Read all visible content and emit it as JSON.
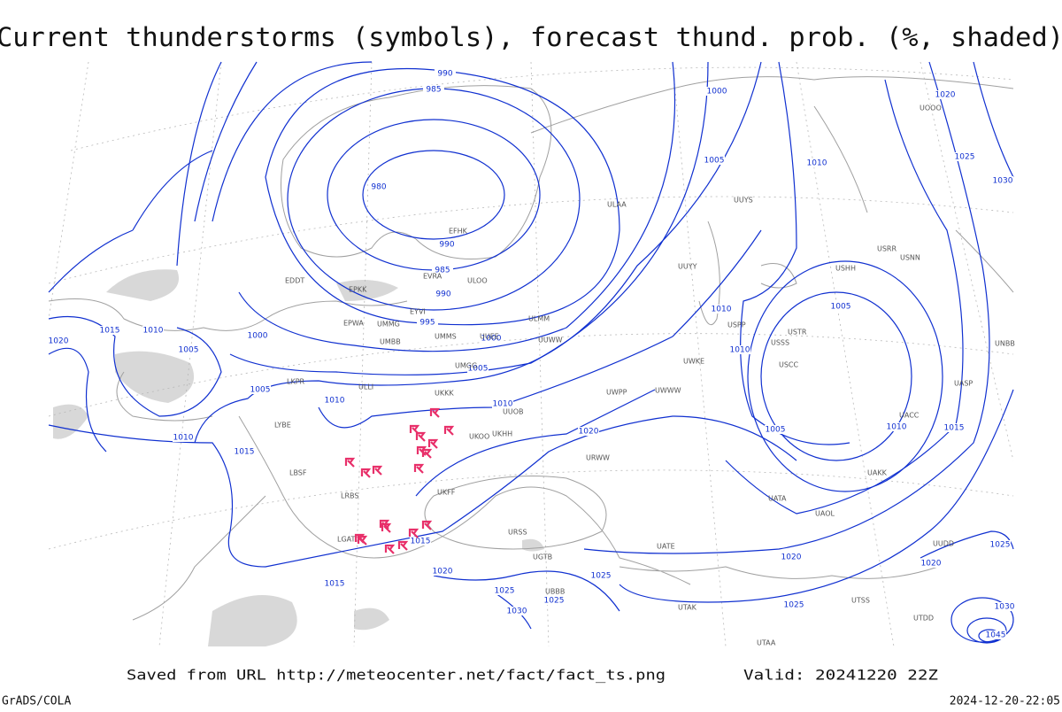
{
  "header": {
    "title": "Current thunderstorms (symbols), forecast thund. prob. (%, shaded)"
  },
  "isobar_labels": [
    "990",
    "985",
    "980",
    "990",
    "985",
    "990",
    "995",
    "1000",
    "1005",
    "1010",
    "1015",
    "1020",
    "1000",
    "1005",
    "1010",
    "1020",
    "1025",
    "1030",
    "1010",
    "1010",
    "1005",
    "1005",
    "1010",
    "1015",
    "1020",
    "1025",
    "1000",
    "1005",
    "1010",
    "1015",
    "1020",
    "1015",
    "1010",
    "1005",
    "1010",
    "1020",
    "1025",
    "1025",
    "1025",
    "1030",
    "1015",
    "1020",
    "1025",
    "1030",
    "1045"
  ],
  "station_labels": [
    "ULOO",
    "EFHK",
    "EVRA",
    "EYVI",
    "EPWA",
    "UMMG",
    "UMBB",
    "UMMS",
    "UMGG",
    "UKKK",
    "UUOB",
    "UUEE",
    "UUWW",
    "UWPP",
    "UWKE",
    "UWWW",
    "UUYY",
    "ULLI",
    "ULMM",
    "UUYS",
    "USSS",
    "USTR",
    "USCC",
    "UACC",
    "UATA",
    "UATE",
    "URSS",
    "URWW",
    "UKHH",
    "UKOO",
    "LYBE",
    "LBSF",
    "LRBS",
    "UKFF",
    "UGTB",
    "UBBB",
    "ULAA",
    "UUDD",
    "EDDT",
    "EPKK",
    "LKPR",
    "USPP",
    "USRR",
    "USHH",
    "UNBB",
    "UASP",
    "UAKK",
    "UAOL",
    "UTSS",
    "UTDD",
    "LGAT",
    "UTAA",
    "UTAK",
    "USNN",
    "UOOO"
  ],
  "footer": {
    "saved": "Saved from URL http://meteocenter.net/fact/fact_ts.png",
    "valid": "Valid: 20241220 22Z",
    "software": "GrADS/COLA",
    "timestamp": "2024-12-20-22:05"
  }
}
